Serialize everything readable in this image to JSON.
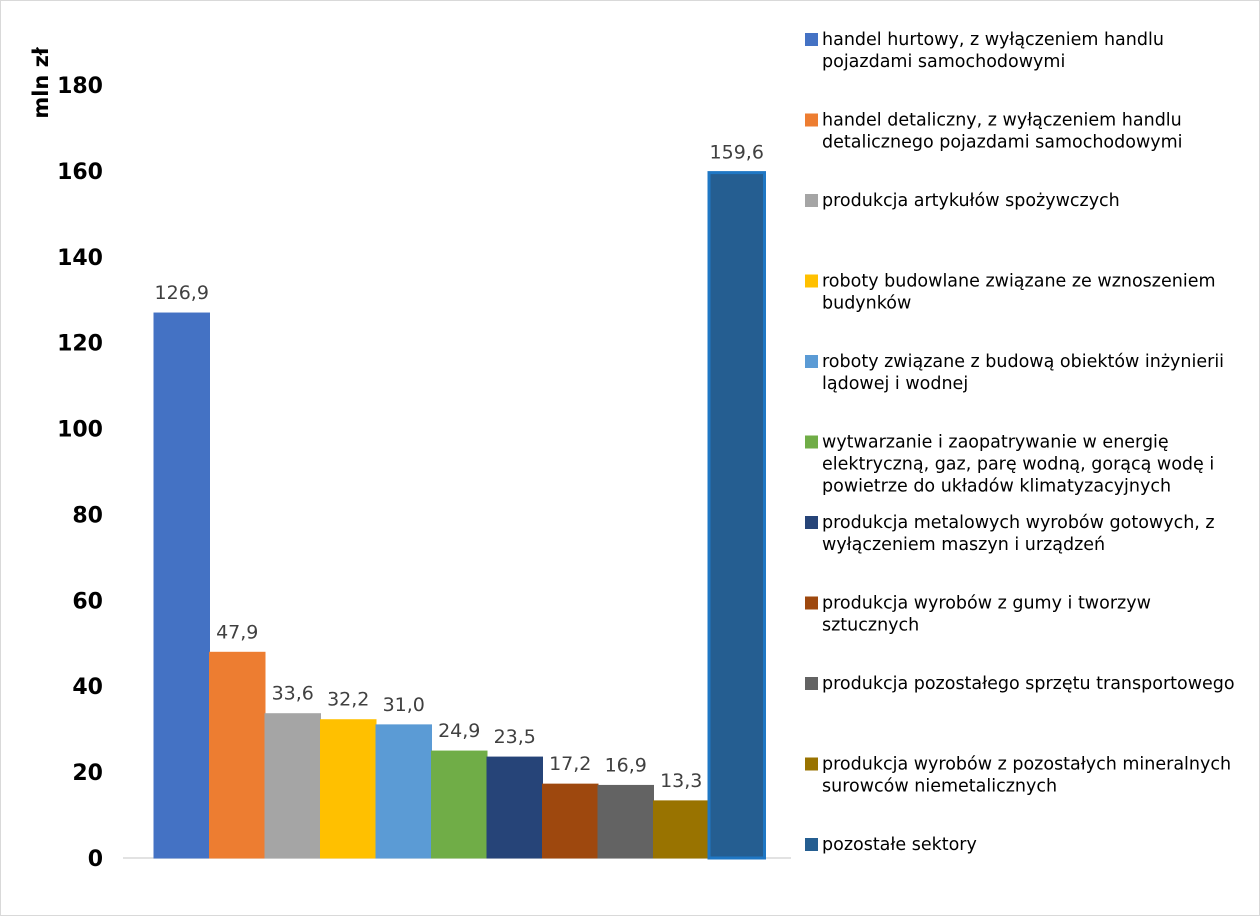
{
  "chart_data": {
    "type": "bar",
    "ylabel": "mln zł",
    "ylim": [
      0,
      180
    ],
    "yticks": [
      0,
      20,
      40,
      60,
      80,
      100,
      120,
      140,
      160,
      180
    ],
    "grid": false,
    "legend_position": "right",
    "series": [
      {
        "name": "handel hurtowy, z wyłączeniem handlu pojazdami samochodowymi",
        "value": 126.9,
        "label": "126,9",
        "color": "#4472c4"
      },
      {
        "name": "handel detaliczny, z wyłączeniem handlu detalicznego pojazdami samochodowymi",
        "value": 47.9,
        "label": "47,9",
        "color": "#ed7d31"
      },
      {
        "name": "produkcja artykułów spożywczych",
        "value": 33.6,
        "label": "33,6",
        "color": "#a5a5a5"
      },
      {
        "name": "roboty budowlane związane ze wznoszeniem budynków",
        "value": 32.2,
        "label": "32,2",
        "color": "#ffc000"
      },
      {
        "name": "roboty związane z budową obiektów inżynierii lądowej i wodnej",
        "value": 31.0,
        "label": "31,0",
        "color": "#5b9bd5"
      },
      {
        "name": "wytwarzanie i zaopatrywanie w energię elektryczną, gaz, parę wodną, gorącą wodę i powietrze do układów klimatyzacyjnych",
        "value": 24.9,
        "label": "24,9",
        "color": "#70ad47"
      },
      {
        "name": "produkcja metalowych wyrobów gotowych, z wyłączeniem maszyn i urządzeń",
        "value": 23.5,
        "label": "23,5",
        "color": "#264478"
      },
      {
        "name": "produkcja wyrobów z gumy i tworzyw sztucznych",
        "value": 17.2,
        "label": "17,2",
        "color": "#9e480e"
      },
      {
        "name": "produkcja pozostałego sprzętu transportowego",
        "value": 16.9,
        "label": "16,9",
        "color": "#636363"
      },
      {
        "name": "produkcja wyrobów z pozostałych mineralnych surowców niemetalicznych",
        "value": 13.3,
        "label": "13,3",
        "color": "#997300"
      },
      {
        "name": "pozostałe sektory",
        "value": 159.6,
        "label": "159,6",
        "color": "#255e91"
      }
    ]
  }
}
